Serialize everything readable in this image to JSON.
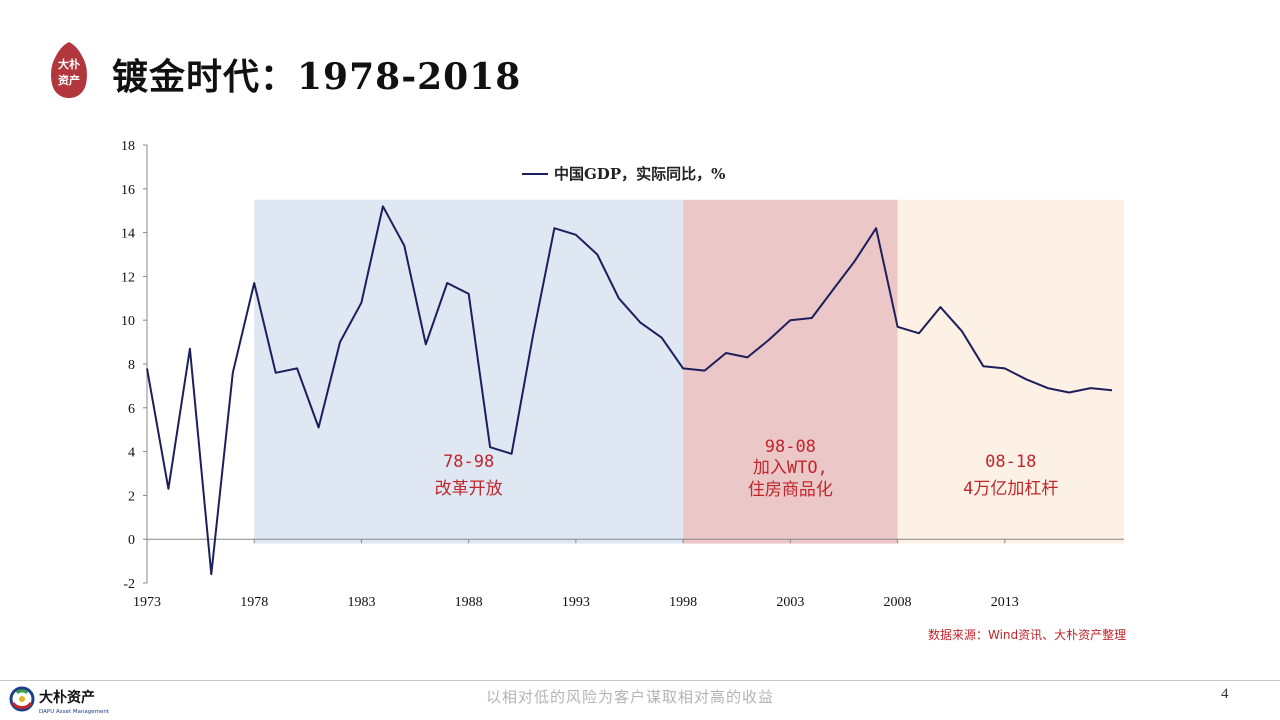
{
  "header": {
    "title": "镀金时代：1978-2018",
    "seal_text": [
      "大朴",
      "资产"
    ]
  },
  "colors": {
    "line": "#1c1f5c",
    "band_1": "#dfe7f3",
    "band_2": "#ebc7c8",
    "band_3": "#fdf0e5",
    "annotation": "#c0262c",
    "seal": "#b2373d"
  },
  "chart_data": {
    "type": "line",
    "legend": "中国GDP，实际同比，%",
    "legend_position": "top-center",
    "grid": false,
    "ylim": [
      -2,
      18
    ],
    "y_ticks": [
      "-2",
      "0",
      "2",
      "4",
      "6",
      "8",
      "10",
      "12",
      "14",
      "16",
      "18"
    ],
    "x_tick_labels": [
      "1973",
      "1978",
      "1983",
      "1988",
      "1993",
      "1998",
      "2003",
      "2008",
      "2013"
    ],
    "series": [
      {
        "name": "中国GDP，实际同比，%",
        "x": [
          1973,
          1974,
          1975,
          1976,
          1977,
          1978,
          1979,
          1980,
          1981,
          1982,
          1983,
          1984,
          1985,
          1986,
          1987,
          1988,
          1989,
          1990,
          1991,
          1992,
          1993,
          1994,
          1995,
          1996,
          1997,
          1998,
          1999,
          2000,
          2001,
          2002,
          2003,
          2004,
          2005,
          2006,
          2007,
          2008,
          2009,
          2010,
          2011,
          2012,
          2013,
          2014,
          2015,
          2016,
          2017,
          2018
        ],
        "values": [
          7.8,
          2.3,
          8.7,
          -1.6,
          7.6,
          11.7,
          7.6,
          7.8,
          5.1,
          9.0,
          10.8,
          15.2,
          13.4,
          8.9,
          11.7,
          11.2,
          4.2,
          3.9,
          9.3,
          14.2,
          13.9,
          13.0,
          11.0,
          9.9,
          9.2,
          7.8,
          7.7,
          8.5,
          8.3,
          9.1,
          10.0,
          10.1,
          11.4,
          12.7,
          14.2,
          9.7,
          9.4,
          10.6,
          9.5,
          7.9,
          7.8,
          7.3,
          6.9,
          6.7,
          6.9,
          6.8
        ]
      }
    ],
    "periods": [
      {
        "from": 1978,
        "to": 1998,
        "label_line1": "78-98",
        "label_line2": "改革开放",
        "label_line3": ""
      },
      {
        "from": 1998,
        "to": 2008,
        "label_line1": "98-08",
        "label_line2": "加入WTO,",
        "label_line3": "住房商品化"
      },
      {
        "from": 2008,
        "to": 2018,
        "label_line1": "08-18",
        "label_line2": "4万亿加杠杆",
        "label_line3": ""
      }
    ]
  },
  "source": "数据来源：Wind资讯、大朴资产整理",
  "footer": {
    "logo_name": "大朴资产",
    "logo_sub": "DAPU Asset Management",
    "slogan": "以相对低的风险为客户谋取相对高的收益",
    "page_number": "4"
  }
}
